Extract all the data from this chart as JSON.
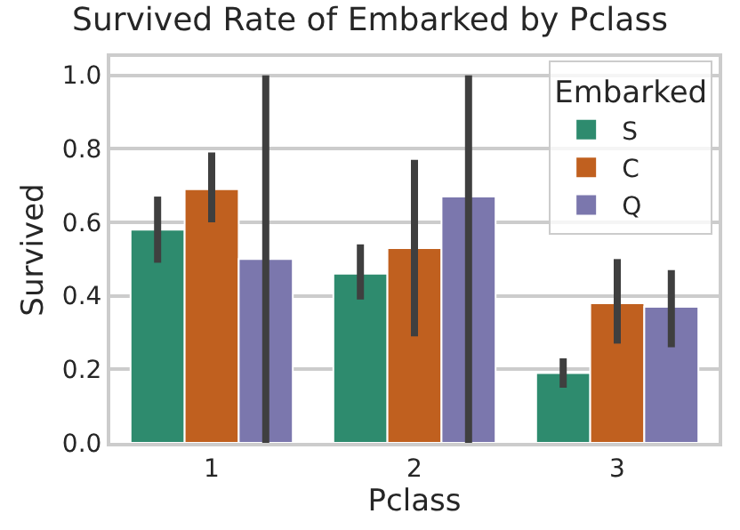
{
  "chart_data": {
    "type": "bar",
    "title": "Survived Rate of Embarked by Pclass",
    "xlabel": "Pclass",
    "ylabel": "Survived",
    "legend_title": "Embarked",
    "categories": [
      "1",
      "2",
      "3"
    ],
    "series": [
      {
        "name": "S",
        "color": "#2e8b6e",
        "values": [
          0.58,
          0.46,
          0.19
        ],
        "errors": [
          [
            0.49,
            0.67
          ],
          [
            0.39,
            0.54
          ],
          [
            0.15,
            0.23
          ]
        ]
      },
      {
        "name": "C",
        "color": "#c0601f",
        "values": [
          0.69,
          0.53,
          0.38
        ],
        "errors": [
          [
            0.6,
            0.79
          ],
          [
            0.29,
            0.77
          ],
          [
            0.27,
            0.5
          ]
        ]
      },
      {
        "name": "Q",
        "color": "#7b77ad",
        "values": [
          0.5,
          0.67,
          0.37
        ],
        "errors": [
          [
            0.0,
            1.0
          ],
          [
            0.0,
            1.0
          ],
          [
            0.26,
            0.47
          ]
        ]
      }
    ],
    "ylim": [
      0,
      1.05
    ],
    "yticks": [
      {
        "value": 0,
        "label": "0.0"
      },
      {
        "value": 0.2,
        "label": "0.2"
      },
      {
        "value": 0.4,
        "label": "0.4"
      },
      {
        "value": 0.6,
        "label": "0.6"
      },
      {
        "value": 0.8,
        "label": "0.8"
      },
      {
        "value": 1.0,
        "label": "1.0"
      }
    ],
    "grid": "y",
    "legend": "top right"
  }
}
